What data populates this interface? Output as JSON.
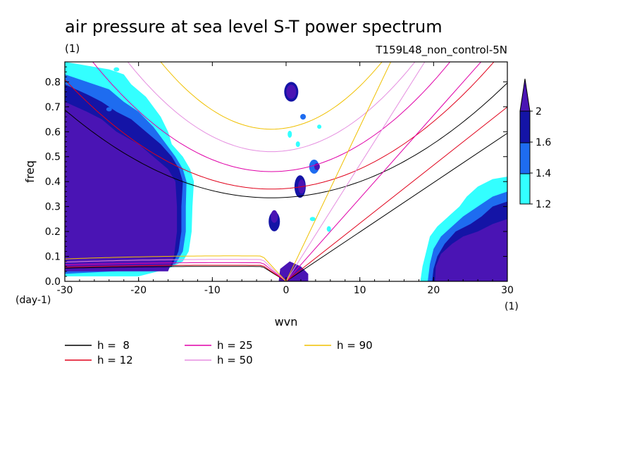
{
  "chart_data": {
    "type": "heatmap",
    "title": "air pressure at sea level S-T power spectrum",
    "units": "(1)",
    "run_label": "T159L48_non_control-5N",
    "xlabel": "wvn",
    "ylabel": "freq",
    "x_unit": "(1)",
    "y_unit": "(day-1)",
    "xlim": [
      -30,
      30
    ],
    "ylim": [
      0,
      0.88
    ],
    "x_ticks": [
      "-30",
      "-20",
      "-10",
      "0",
      "10",
      "20",
      "30"
    ],
    "y_ticks": [
      "0.0",
      "0.1",
      "0.2",
      "0.3",
      "0.4",
      "0.5",
      "0.6",
      "0.7",
      "0.8"
    ],
    "colorbar": {
      "levels": [
        "1.2",
        "1.4",
        "1.6",
        "2"
      ],
      "colors": [
        "#33ffff",
        "#1e6cf0",
        "#1414a6",
        "#4a14b4"
      ]
    },
    "regions": [
      {
        "name": "westward low-wavenumber high-power region",
        "x": [
          -30,
          -13
        ],
        "y": [
          0.05,
          0.85
        ],
        "level": ">2"
      },
      {
        "name": "eastward high-wavenumber high-power region",
        "x": [
          19,
          30
        ],
        "y": [
          0.0,
          0.42
        ],
        "level": ">2"
      },
      {
        "name": "near-zero wavenumber peaks",
        "x": [
          -3,
          5
        ],
        "y": [
          0.0,
          0.8
        ],
        "level": "1.2-2"
      }
    ],
    "series": [
      {
        "name": "h =  8",
        "color": "#000000"
      },
      {
        "name": "h = 12",
        "color": "#e0001a"
      },
      {
        "name": "h = 25",
        "color": "#e000a8"
      },
      {
        "name": "h = 50",
        "color": "#e58ee0"
      },
      {
        "name": "h = 90",
        "color": "#f0c000"
      }
    ]
  }
}
